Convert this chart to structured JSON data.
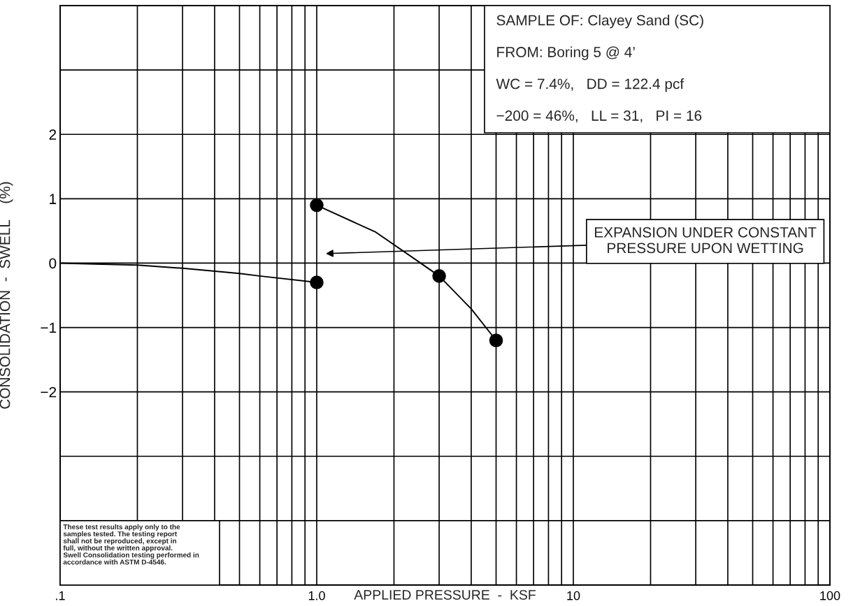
{
  "chart_data": {
    "type": "line",
    "xlabel": "APPLIED PRESSURE  -  KSF",
    "ylabel": "CONSOLIDATION  -  SWELL    (%)",
    "series": [
      {
        "color": "#000000",
        "marker": "none",
        "x": [
          0.1,
          0.2,
          0.3,
          0.5,
          0.6,
          1
        ],
        "values": [
          0,
          -0.03,
          -0.08,
          -0.16,
          -0.2,
          -0.3
        ]
      },
      {
        "color": "#000000",
        "marker": "none",
        "x": [
          1,
          1.7,
          2.5,
          3,
          4,
          5
        ],
        "values": [
          0.9,
          0.48,
          0.02,
          -0.2,
          -0.71,
          -1.2
        ]
      },
      {
        "type": "scatter",
        "color": "#000000",
        "marker": "circle",
        "x": [
          1,
          1,
          3,
          5
        ],
        "values": [
          0.9,
          -0.3,
          -0.2,
          -1.2
        ]
      }
    ],
    "log": "x",
    "xlim": [
      0.1,
      100
    ],
    "ylim": [
      -5,
      4
    ],
    "xticks": [
      {
        "value": 0.1,
        "label": ".1"
      },
      {
        "value": 0.2,
        "label": null
      },
      {
        "value": 0.3,
        "label": null
      },
      {
        "value": 0.4,
        "label": null
      },
      {
        "value": 0.5,
        "label": null
      },
      {
        "value": 0.6,
        "label": null
      },
      {
        "value": 0.7,
        "label": null
      },
      {
        "value": 0.8,
        "label": null
      },
      {
        "value": 0.9,
        "label": null
      },
      {
        "value": 1,
        "label": "1.0"
      },
      {
        "value": 2,
        "label": null
      },
      {
        "value": 3,
        "label": null
      },
      {
        "value": 4,
        "label": null
      },
      {
        "value": 5,
        "label": null
      },
      {
        "value": 6,
        "label": null
      },
      {
        "value": 7,
        "label": null
      },
      {
        "value": 8,
        "label": null
      },
      {
        "value": 9,
        "label": null
      },
      10,
      {
        "value": 20,
        "label": null
      },
      {
        "value": 30,
        "label": null
      },
      {
        "value": 40,
        "label": null
      },
      {
        "value": 50,
        "label": null
      },
      {
        "value": 60,
        "label": null
      },
      {
        "value": 70,
        "label": null
      },
      {
        "value": 80,
        "label": null
      },
      {
        "value": 90,
        "label": null
      },
      100
    ],
    "yticks": [
      {
        "value": -4,
        "label": null
      },
      {
        "value": -3,
        "label": null
      },
      {
        "value": -2,
        "label": "−2"
      },
      {
        "value": -1,
        "label": "−1"
      },
      0,
      1,
      2,
      {
        "value": 3,
        "label": null
      }
    ],
    "grid": true,
    "annotations": [
      "SAMPLE OF: Clayey Sand (SC)",
      "FROM: Boring 5 @ 4’",
      "WC = 7.4%,   DD = 122.4 pcf",
      "−200 = 46%,   LL = 31,   PI = 16",
      "EXPANSION UNDER CONSTANT\nPRESSURE UPON WETTING",
      "These test results apply only to the\nsamples tested. The testing report\nshall not be reproduced, except in\nfull, without the written approval.\nSwell Consolidation testing performed in\naccordance with ASTM D-4546."
    ]
  }
}
